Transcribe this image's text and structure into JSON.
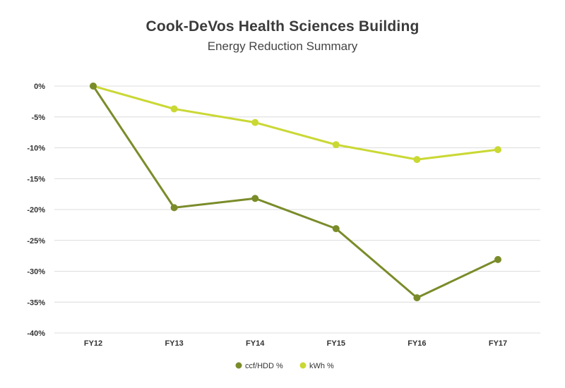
{
  "chart_data": {
    "type": "line",
    "title": "Cook-DeVos Health Sciences Building",
    "subtitle": "Energy Reduction Summary",
    "categories": [
      "FY12",
      "FY13",
      "FY14",
      "FY15",
      "FY16",
      "FY17"
    ],
    "ylim": [
      -40,
      0
    ],
    "yticks": [
      0,
      -5,
      -10,
      -15,
      -20,
      -25,
      -30,
      -35,
      -40
    ],
    "ytick_labels": [
      "0%",
      "-5%",
      "-10%",
      "-15%",
      "-20%",
      "-25%",
      "-30%",
      "-35%",
      "-40%"
    ],
    "grid": true,
    "legend_position": "bottom",
    "series": [
      {
        "name": "ccf/HDD %",
        "color": "#7a8c2a",
        "values": [
          0,
          -19.7,
          -18.2,
          -23.1,
          -34.3,
          -28.1
        ]
      },
      {
        "name": "kWh %",
        "color": "#cad834",
        "values": [
          0,
          -3.7,
          -5.9,
          -9.5,
          -11.9,
          -10.3
        ]
      }
    ]
  }
}
